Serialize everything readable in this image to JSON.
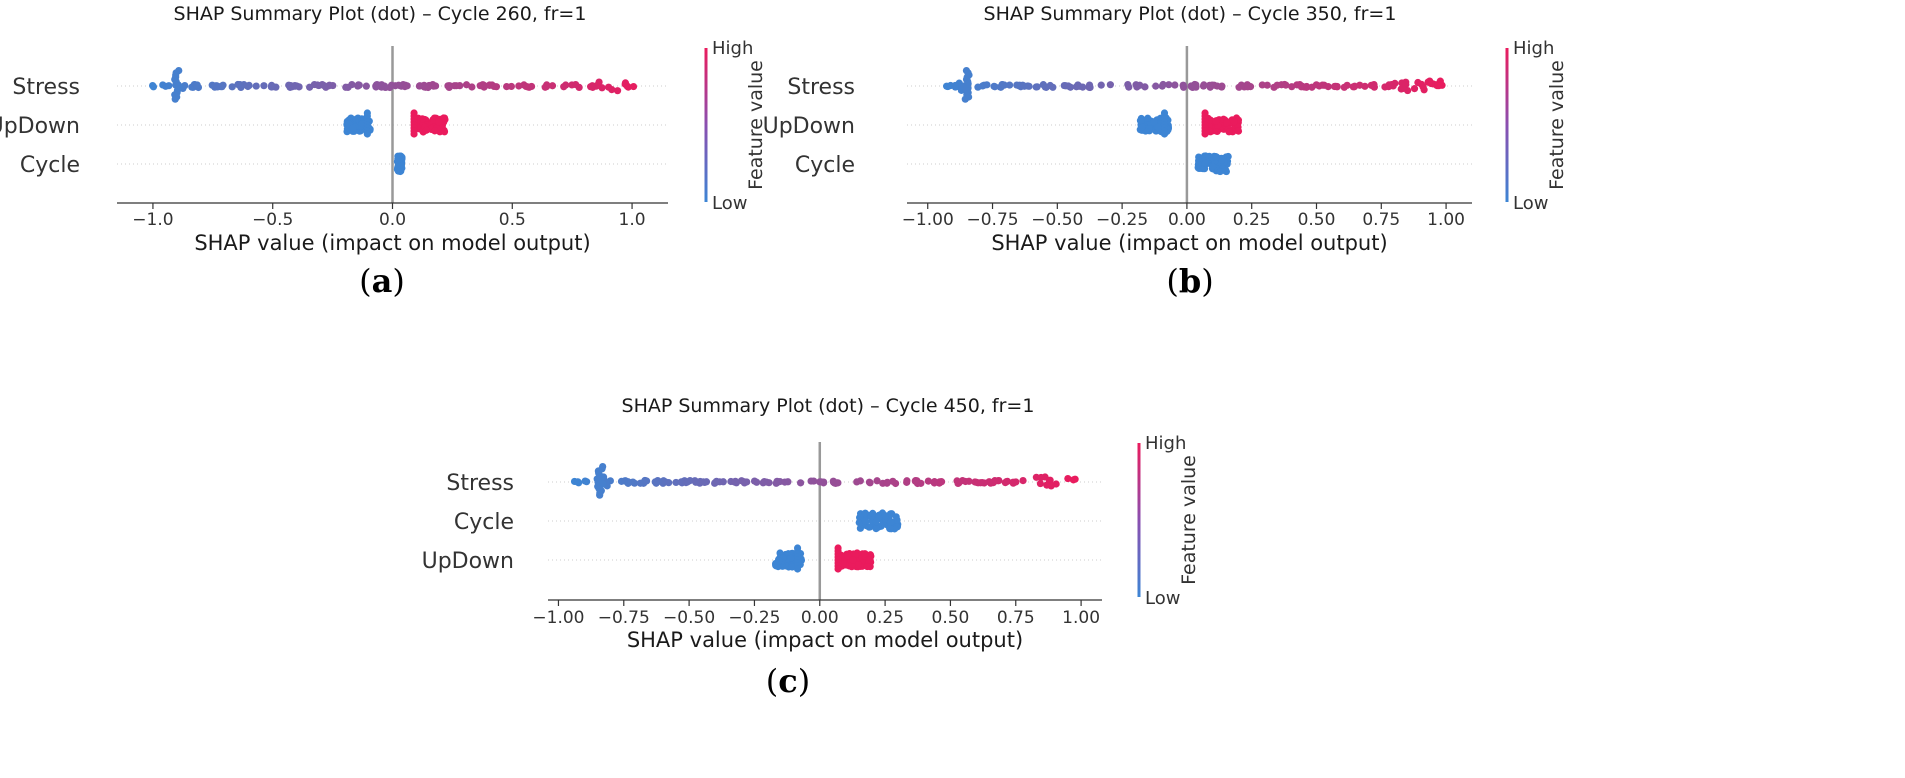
{
  "colors": {
    "low": "#3d85d4",
    "high": "#ea1b5d",
    "zero_line": "#999999",
    "grid": "#cccccc",
    "axis": "#333333"
  },
  "chart_data": [
    {
      "type": "scatter",
      "panel": "a",
      "panel_label": "a",
      "title": "SHAP Summary Plot (dot) – Cycle 260, fr=1",
      "xlabel": "SHAP value (impact on model output)",
      "xlim": [
        -1.15,
        1.15
      ],
      "xticks": [
        -1.0,
        -0.5,
        0.0,
        0.5,
        1.0
      ],
      "xtick_labels": [
        "−1.0",
        "−0.5",
        "0.0",
        "0.5",
        "1.0"
      ],
      "features": [
        "Stress",
        "UpDown",
        "Cycle"
      ],
      "colorbar": {
        "title": "Feature value",
        "high": "High",
        "low": "Low"
      },
      "series": [
        {
          "name": "Stress",
          "kind": "spread",
          "min": -1.02,
          "max": 1.06,
          "low_cluster": -0.9
        },
        {
          "name": "UpDown",
          "kind": "binary",
          "low_range": [
            -0.19,
            -0.09
          ],
          "high_range": [
            0.09,
            0.22
          ]
        },
        {
          "name": "Cycle",
          "kind": "cluster",
          "range": [
            0.02,
            0.04
          ],
          "value": "low"
        }
      ]
    },
    {
      "type": "scatter",
      "panel": "b",
      "panel_label": "b",
      "title": "SHAP Summary Plot (dot) – Cycle 350, fr=1",
      "xlabel": "SHAP value (impact on model output)",
      "xlim": [
        -1.08,
        1.1
      ],
      "xticks": [
        -1.0,
        -0.75,
        -0.5,
        -0.25,
        0.0,
        0.25,
        0.5,
        0.75,
        1.0
      ],
      "xtick_labels": [
        "−1.00",
        "−0.75",
        "−0.50",
        "−0.25",
        "0.00",
        "0.25",
        "0.50",
        "0.75",
        "1.00"
      ],
      "features": [
        "Stress",
        "UpDown",
        "Cycle"
      ],
      "colorbar": {
        "title": "Feature value",
        "high": "High",
        "low": "Low"
      },
      "series": [
        {
          "name": "Stress",
          "kind": "spread",
          "min": -0.94,
          "max": 1.0,
          "low_cluster": -0.85
        },
        {
          "name": "UpDown",
          "kind": "binary",
          "low_range": [
            -0.18,
            -0.07
          ],
          "high_range": [
            0.07,
            0.2
          ]
        },
        {
          "name": "Cycle",
          "kind": "cluster",
          "range": [
            0.04,
            0.16
          ],
          "value": "low"
        }
      ]
    },
    {
      "type": "scatter",
      "panel": "c",
      "panel_label": "c",
      "title": "SHAP Summary Plot (dot) – Cycle 450, fr=1",
      "xlabel": "SHAP value (impact on model output)",
      "xlim": [
        -1.04,
        1.08
      ],
      "xticks": [
        -1.0,
        -0.75,
        -0.5,
        -0.25,
        0.0,
        0.25,
        0.5,
        0.75,
        1.0
      ],
      "xtick_labels": [
        "−1.00",
        "−0.75",
        "−0.50",
        "−0.25",
        "0.00",
        "0.25",
        "0.50",
        "0.75",
        "1.00"
      ],
      "features": [
        "Stress",
        "Cycle",
        "UpDown"
      ],
      "colorbar": {
        "title": "Feature value",
        "high": "High",
        "low": "Low"
      },
      "series": [
        {
          "name": "Stress",
          "kind": "spread",
          "min": -0.94,
          "max": 0.98,
          "low_cluster": -0.84
        },
        {
          "name": "Cycle",
          "kind": "cluster",
          "range": [
            0.15,
            0.3
          ],
          "value": "low"
        },
        {
          "name": "UpDown",
          "kind": "binary",
          "low_range": [
            -0.17,
            -0.07
          ],
          "high_range": [
            0.07,
            0.2
          ]
        }
      ]
    }
  ]
}
